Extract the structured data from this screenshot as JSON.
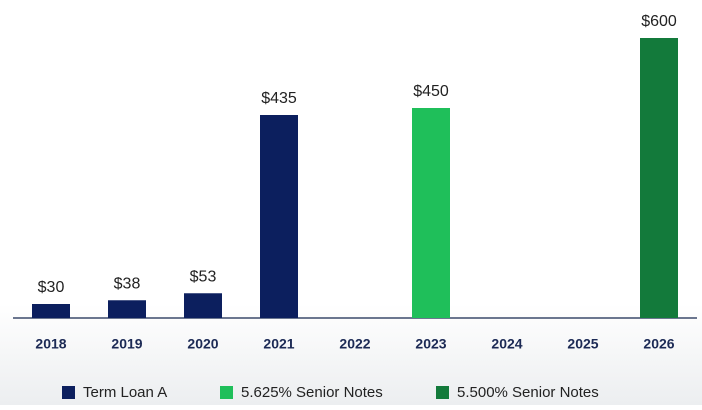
{
  "chart_data": {
    "type": "bar",
    "categories": [
      "2018",
      "2019",
      "2020",
      "2021",
      "2022",
      "2023",
      "2024",
      "2025",
      "2026"
    ],
    "series": [
      {
        "name": "Term Loan A",
        "color": "#0c1f5e",
        "values": [
          30,
          38,
          53,
          435,
          null,
          null,
          null,
          null,
          null
        ],
        "value_labels": [
          "$30",
          "$38",
          "$53",
          "$435",
          null,
          null,
          null,
          null,
          null
        ]
      },
      {
        "name": "5.625% Senior Notes",
        "color": "#1fbf5a",
        "values": [
          null,
          null,
          null,
          null,
          null,
          450,
          null,
          null,
          null
        ],
        "value_labels": [
          null,
          null,
          null,
          null,
          null,
          "$450",
          null,
          null,
          null
        ]
      },
      {
        "name": "5.500% Senior Notes",
        "color": "#137a3b",
        "values": [
          null,
          null,
          null,
          null,
          null,
          null,
          null,
          null,
          600
        ],
        "value_labels": [
          null,
          null,
          null,
          null,
          null,
          null,
          null,
          null,
          "$600"
        ]
      }
    ]
  }
}
